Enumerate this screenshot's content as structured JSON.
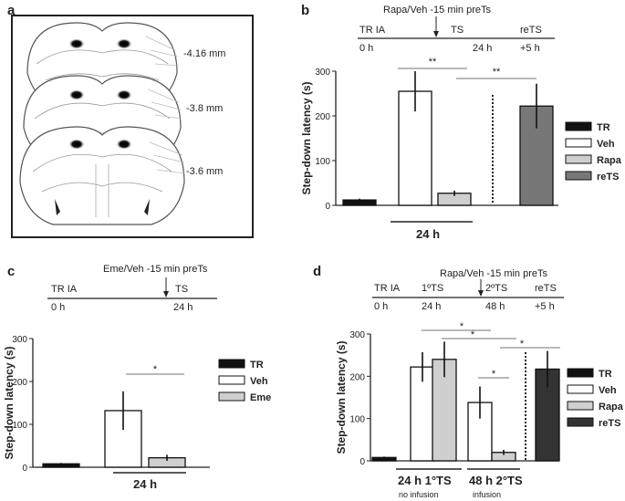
{
  "panels": {
    "a": {
      "letter": "a",
      "levels": [
        "-4.16 mm",
        "-3.8 mm",
        "-3.6 mm"
      ]
    },
    "b": {
      "letter": "b",
      "timeline": {
        "treatment": "Rapa/Veh -15 min preTs",
        "labels_top": [
          "TR IA",
          "TS",
          "reTS"
        ],
        "labels_bottom": [
          "0 h",
          "24 h",
          "+5 h"
        ]
      },
      "sig": [
        "**",
        "**"
      ],
      "group_label": "24 h"
    },
    "c": {
      "letter": "c",
      "timeline": {
        "treatment": "Eme/Veh -15 min preTs",
        "labels_top": [
          "TR IA",
          "TS"
        ],
        "labels_bottom": [
          "0 h",
          "24 h"
        ]
      },
      "sig": [
        "*"
      ],
      "group_label": "24 h"
    },
    "d": {
      "letter": "d",
      "timeline": {
        "treatment": "Rapa/Veh -15 min preTs",
        "labels_top": [
          "TR IA",
          "1ºTS",
          "2ºTS",
          "reTS"
        ],
        "labels_bottom": [
          "0 h",
          "24 h",
          "48 h",
          "+5 h"
        ]
      },
      "sig": [
        "*",
        "*",
        "*",
        "*"
      ],
      "group_labels": [
        "24 h 1°TS",
        "48 h 2°TS"
      ],
      "sub_labels": [
        "no infusion",
        "infusion"
      ]
    }
  },
  "chart_data": [
    {
      "id": "b",
      "type": "bar",
      "ylabel": "Step-down latency (s)",
      "ylim": [
        0,
        300
      ],
      "yticks": [
        0,
        100,
        200,
        300
      ],
      "legend": [
        "TR",
        "Veh",
        "Rapa",
        "reTS"
      ],
      "legend_colors": [
        "#111111",
        "#ffffff",
        "#cfcfcf",
        "#777777"
      ],
      "categories": [
        "TR",
        "Veh",
        "Rapa",
        "reTS"
      ],
      "values": [
        12,
        255,
        27,
        222
      ],
      "errors": [
        3,
        45,
        6,
        50
      ]
    },
    {
      "id": "c",
      "type": "bar",
      "ylabel": "Step-down latency (s)",
      "ylim": [
        0,
        300
      ],
      "yticks": [
        0,
        100,
        200,
        300
      ],
      "legend": [
        "TR",
        "Veh",
        "Eme"
      ],
      "legend_colors": [
        "#111111",
        "#ffffff",
        "#cfcfcf"
      ],
      "categories": [
        "TR",
        "Veh",
        "Eme"
      ],
      "values": [
        8,
        132,
        22
      ],
      "errors": [
        2,
        45,
        7
      ]
    },
    {
      "id": "d",
      "type": "bar",
      "ylabel": "Step-down latency (s)",
      "ylim": [
        0,
        300
      ],
      "yticks": [
        0,
        100,
        200,
        300
      ],
      "legend": [
        "TR",
        "Veh",
        "Rapa",
        "reTS"
      ],
      "legend_colors": [
        "#111111",
        "#ffffff",
        "#cfcfcf",
        "#333333"
      ],
      "categories": [
        "TR",
        "Veh 24 h",
        "Rapa 24 h",
        "Veh 48 h",
        "Rapa 48 h",
        "reTS"
      ],
      "values": [
        8,
        222,
        240,
        138,
        20,
        217
      ],
      "errors": [
        2,
        35,
        42,
        38,
        6,
        43
      ]
    }
  ]
}
